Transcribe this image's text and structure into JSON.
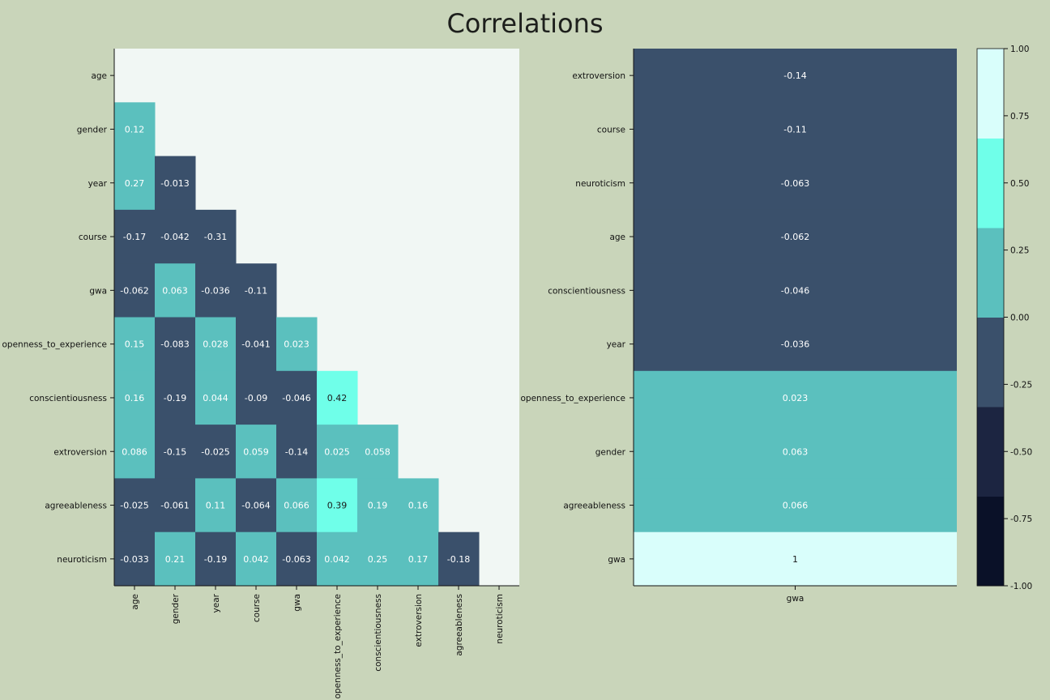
{
  "title": "Correlations",
  "colors": {
    "background": "#c9d5ba",
    "mask": "#f1f7f4",
    "bins": [
      "#0a1128",
      "#1c2541",
      "#3a506b",
      "#5bc0be",
      "#6fffe9",
      "#d9fefb"
    ],
    "text_dark": "#1a1a1a",
    "text_light": "#ffffff"
  },
  "chart_data": [
    {
      "type": "heatmap",
      "subtype": "lower-triangle correlation matrix",
      "labels": [
        "age",
        "gender",
        "year",
        "course",
        "gwa",
        "openness_to_experience",
        "conscientiousness",
        "extroversion",
        "agreeableness",
        "neuroticism"
      ],
      "matrix": [
        [
          null,
          null,
          null,
          null,
          null,
          null,
          null,
          null,
          null,
          null
        ],
        [
          0.12,
          null,
          null,
          null,
          null,
          null,
          null,
          null,
          null,
          null
        ],
        [
          0.27,
          -0.013,
          null,
          null,
          null,
          null,
          null,
          null,
          null,
          null
        ],
        [
          -0.17,
          -0.042,
          -0.31,
          null,
          null,
          null,
          null,
          null,
          null,
          null
        ],
        [
          -0.062,
          0.063,
          -0.036,
          -0.11,
          null,
          null,
          null,
          null,
          null,
          null
        ],
        [
          0.15,
          -0.083,
          0.028,
          -0.041,
          0.023,
          null,
          null,
          null,
          null,
          null
        ],
        [
          0.16,
          -0.19,
          0.044,
          -0.09,
          -0.046,
          0.42,
          null,
          null,
          null,
          null
        ],
        [
          0.086,
          -0.15,
          -0.025,
          0.059,
          -0.14,
          0.025,
          0.058,
          null,
          null,
          null
        ],
        [
          -0.025,
          -0.061,
          0.11,
          -0.064,
          0.066,
          0.39,
          0.19,
          0.16,
          null,
          null
        ],
        [
          -0.033,
          0.21,
          -0.19,
          0.042,
          -0.063,
          0.042,
          0.25,
          0.17,
          -0.18,
          null
        ]
      ],
      "vmin": -1,
      "vmax": 1
    },
    {
      "type": "heatmap",
      "subtype": "correlation with gwa (sorted)",
      "column": "gwa",
      "rows": [
        "extroversion",
        "course",
        "neuroticism",
        "age",
        "conscientiousness",
        "year",
        "openness_to_experience",
        "gender",
        "agreeableness",
        "gwa"
      ],
      "values": [
        -0.14,
        -0.11,
        -0.063,
        -0.062,
        -0.046,
        -0.036,
        0.023,
        0.063,
        0.066,
        1
      ]
    },
    {
      "type": "colorbar",
      "range": [
        -1,
        1
      ],
      "bin_edges": [
        -1.0,
        -0.6667,
        -0.3333,
        0.0,
        0.3333,
        0.6667,
        1.0
      ],
      "ticks": [
        "1.00",
        "0.75",
        "0.50",
        "0.25",
        "0.00",
        "-0.25",
        "-0.50",
        "-0.75",
        "-1.00"
      ],
      "tick_values": [
        1.0,
        0.75,
        0.5,
        0.25,
        0.0,
        -0.25,
        -0.5,
        -0.75,
        -1.0
      ]
    }
  ]
}
